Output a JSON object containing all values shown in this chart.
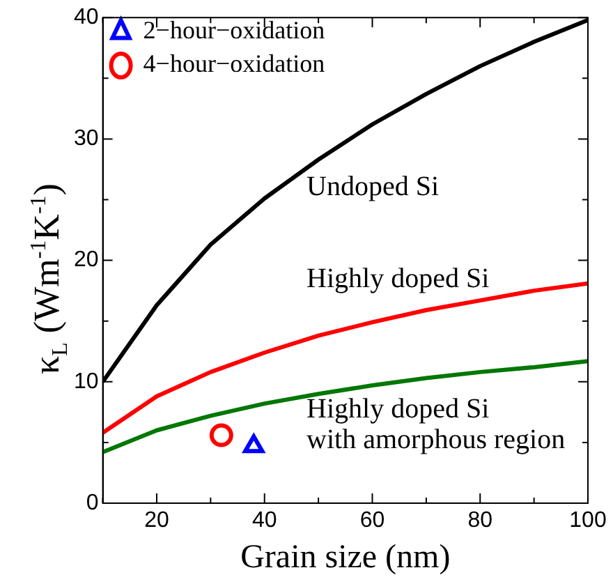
{
  "chart_data": {
    "type": "line",
    "xlabel": "Grain size (nm)",
    "ylabel": "κ$_{L}$ (Wm$^{-1}$K$^{-1}$)",
    "xlim": [
      10,
      100
    ],
    "xticks": [
      {
        "value": 10,
        "label": null
      },
      20,
      {
        "value": 30,
        "label": null
      },
      40,
      {
        "value": 50,
        "label": null
      },
      60,
      {
        "value": 70,
        "label": null
      },
      80,
      {
        "value": 90,
        "label": null
      },
      100
    ],
    "ylim": [
      0,
      40
    ],
    "yticks": [
      0,
      {
        "value": 5,
        "label": null
      },
      10,
      {
        "value": 15,
        "label": null
      },
      20,
      {
        "value": 25,
        "label": null
      },
      30,
      {
        "value": 35,
        "label": null
      },
      40
    ],
    "grid": false,
    "legend": "top left",
    "line_style": "solid",
    "series": [
      {
        "color": "#000000",
        "x": [
          10,
          20,
          30,
          40,
          50,
          60,
          70,
          80,
          90,
          100
        ],
        "values": [
          10,
          16.3,
          21.3,
          25.1,
          28.3,
          31.2,
          33.7,
          36,
          38,
          39.8
        ]
      },
      {
        "color": "#ff0000",
        "x": [
          10,
          20,
          30,
          40,
          50,
          60,
          70,
          80,
          90,
          100
        ],
        "values": [
          5.8,
          8.8,
          10.8,
          12.4,
          13.8,
          14.9,
          15.9,
          16.7,
          17.5,
          18.1
        ]
      },
      {
        "color": "#007700",
        "x": [
          10,
          20,
          30,
          40,
          50,
          60,
          70,
          80,
          90,
          100
        ],
        "values": [
          4.2,
          6,
          7.2,
          8.2,
          9,
          9.7,
          10.3,
          10.8,
          11.2,
          11.7
        ]
      },
      {
        "type": "scatter",
        "name": "2−hour−oxidation",
        "color": "#0000ff",
        "marker": "triangle",
        "x": [
          38
        ],
        "values": [
          4.7
        ]
      },
      {
        "type": "scatter",
        "name": "4−hour−oxidation",
        "color": "#ff0000",
        "marker": "circle",
        "x": [
          32
        ],
        "values": [
          5.6
        ]
      }
    ],
    "annotations": [
      "Undoped Si",
      "Highly doped Si",
      "Highly doped Si\nwith amorphous region"
    ]
  }
}
